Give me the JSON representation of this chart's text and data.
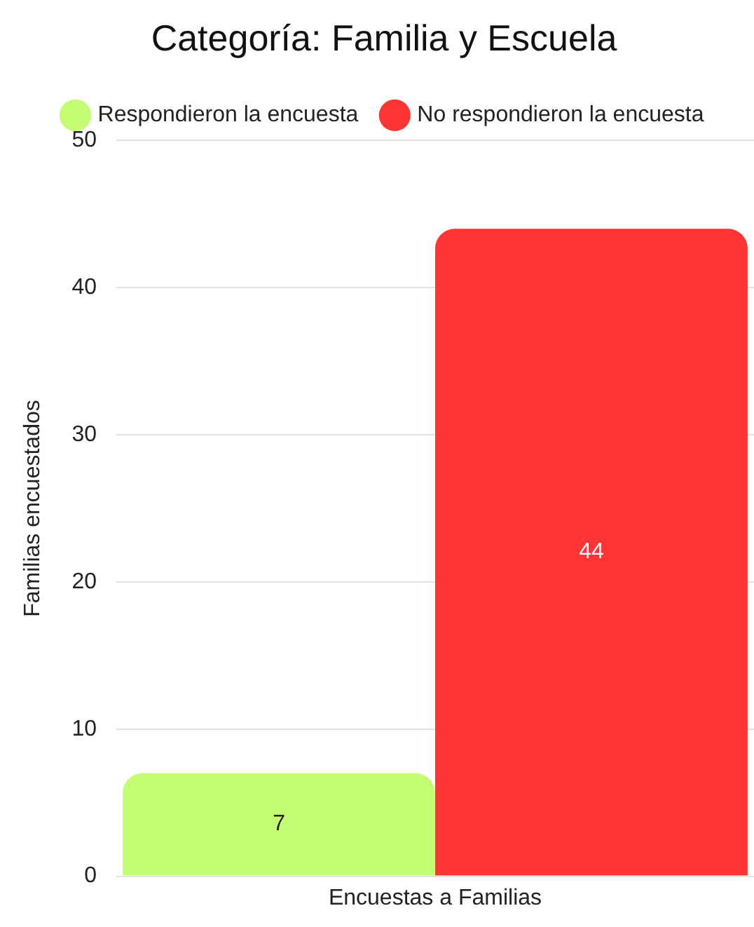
{
  "chart_data": {
    "type": "bar",
    "title": "Categoría: Familia y Escuela",
    "ylabel": "Familias encuestados",
    "categories": [
      "Encuestas a Familias"
    ],
    "series": [
      {
        "name": "Respondieron la encuesta",
        "color": "#c4fc72",
        "values": [
          7
        ]
      },
      {
        "name": "No respondieron la encuesta",
        "color": "#ff3434",
        "values": [
          44
        ]
      }
    ],
    "ylim": [
      0,
      50
    ],
    "yticks": [
      0,
      10,
      20,
      30,
      40,
      50
    ],
    "grid": "y",
    "legend": "top",
    "data_labels": true
  }
}
